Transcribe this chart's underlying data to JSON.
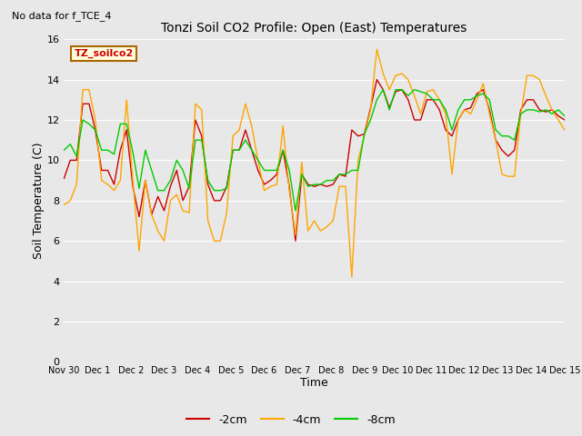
{
  "title": "Tonzi Soil CO2 Profile: Open (East) Temperatures",
  "no_data_text": "No data for f_TCE_4",
  "box_label": "TZ_soilco2",
  "xlabel": "Time",
  "ylabel": "Soil Temperature (C)",
  "ylim": [
    0,
    16
  ],
  "yticks": [
    0,
    2,
    4,
    6,
    8,
    10,
    12,
    14,
    16
  ],
  "xtick_labels": [
    "Nov 30",
    "Dec 1",
    "Dec 2",
    "Dec 3",
    "Dec 4",
    "Dec 5",
    "Dec 6",
    "Dec 7",
    "Dec 8",
    "Dec 9",
    "Dec 10",
    "Dec 11",
    "Dec 12",
    "Dec 13",
    "Dec 14",
    "Dec 15"
  ],
  "figure_bg": "#e8e8e8",
  "plot_bg": "#e8e8e8",
  "line_2cm_color": "#cc0000",
  "line_4cm_color": "#ffa500",
  "line_8cm_color": "#00cc00",
  "legend_labels": [
    "-2cm",
    "-4cm",
    "-8cm"
  ],
  "t_2cm": [
    9.1,
    10.0,
    10.0,
    12.8,
    12.8,
    11.5,
    9.5,
    9.5,
    8.8,
    10.5,
    11.5,
    8.7,
    7.2,
    9.0,
    7.3,
    8.2,
    7.5,
    8.7,
    9.5,
    8.0,
    8.7,
    12.0,
    11.2,
    8.8,
    8.0,
    8.0,
    8.7,
    10.5,
    10.5,
    11.5,
    10.5,
    9.5,
    8.8,
    9.0,
    9.3,
    10.5,
    8.7,
    6.0,
    9.3,
    8.8,
    8.7,
    8.8,
    8.7,
    8.8,
    9.3,
    9.2,
    11.5,
    11.2,
    11.3,
    12.6,
    14.0,
    13.5,
    12.6,
    13.4,
    13.5,
    13.0,
    12.0,
    12.0,
    13.0,
    13.0,
    12.5,
    11.5,
    11.2,
    12.0,
    12.5,
    12.6,
    13.3,
    13.5,
    12.5,
    11.0,
    10.5,
    10.2,
    10.5,
    12.5,
    13.0,
    13.0,
    12.5,
    12.4,
    12.5,
    12.2,
    12.0
  ],
  "t_4cm": [
    7.8,
    8.0,
    8.8,
    13.5,
    13.5,
    12.0,
    9.0,
    8.8,
    8.5,
    9.0,
    13.0,
    9.0,
    5.5,
    9.0,
    7.3,
    6.5,
    6.0,
    8.0,
    8.3,
    7.5,
    7.4,
    12.8,
    12.5,
    7.0,
    6.0,
    6.0,
    7.4,
    11.2,
    11.5,
    12.8,
    11.7,
    10.0,
    8.5,
    8.7,
    8.8,
    11.7,
    8.5,
    6.3,
    9.9,
    6.5,
    7.0,
    6.5,
    6.7,
    7.0,
    8.7,
    8.7,
    4.2,
    10.0,
    11.2,
    12.5,
    15.5,
    14.3,
    13.5,
    14.2,
    14.3,
    14.0,
    13.2,
    12.3,
    13.4,
    13.5,
    13.0,
    12.3,
    9.3,
    12.0,
    12.5,
    12.3,
    13.0,
    13.8,
    12.3,
    11.0,
    9.3,
    9.2,
    9.2,
    12.3,
    14.2,
    14.2,
    14.0,
    13.2,
    12.5,
    12.0,
    11.5
  ],
  "t_8cm": [
    10.5,
    10.8,
    10.2,
    12.0,
    11.8,
    11.5,
    10.5,
    10.5,
    10.3,
    11.8,
    11.8,
    10.4,
    8.6,
    10.5,
    9.5,
    8.5,
    8.5,
    9.0,
    10.0,
    9.5,
    8.6,
    11.0,
    11.0,
    9.0,
    8.5,
    8.5,
    8.6,
    10.5,
    10.5,
    11.0,
    10.5,
    10.0,
    9.5,
    9.5,
    9.5,
    10.5,
    9.5,
    7.5,
    9.3,
    8.7,
    8.8,
    8.8,
    9.0,
    9.0,
    9.3,
    9.3,
    9.5,
    9.5,
    11.3,
    12.0,
    13.0,
    13.5,
    12.5,
    13.5,
    13.5,
    13.2,
    13.5,
    13.4,
    13.3,
    13.0,
    13.0,
    12.5,
    11.5,
    12.5,
    13.0,
    13.0,
    13.2,
    13.3,
    13.0,
    11.5,
    11.2,
    11.2,
    11.0,
    12.3,
    12.5,
    12.5,
    12.4,
    12.5,
    12.3,
    12.5,
    12.2
  ]
}
